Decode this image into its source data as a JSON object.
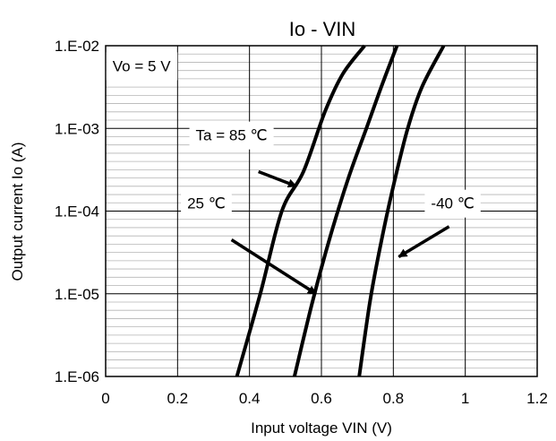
{
  "chart_data": {
    "type": "line",
    "title": "Io - VIN",
    "xlabel": "Input voltage VIN (V)",
    "ylabel": "Output current Io (A)",
    "xlim": [
      0,
      1.2
    ],
    "ylim": [
      1e-06,
      0.01
    ],
    "y_scale": "log",
    "grid": true,
    "x_ticks": [
      0,
      0.2,
      0.4,
      0.6,
      0.8,
      1.0,
      1.2
    ],
    "x_tick_labels": [
      "0",
      "0.2",
      "0.4",
      "0.6",
      "0.8",
      "1",
      "1.2"
    ],
    "y_ticks": [
      1e-06,
      1e-05,
      0.0001,
      0.001,
      0.01
    ],
    "y_tick_labels": [
      "1.E-06",
      "1.E-05",
      "1.E-04",
      "1.E-03",
      "1.E-02"
    ],
    "series": [
      {
        "name": "Ta = 85 °C",
        "x": [
          0.365,
          0.43,
          0.49,
          0.55,
          0.61,
          0.66,
          0.72
        ],
        "y": [
          1e-06,
          1e-05,
          0.0001,
          0.0003,
          0.0016,
          0.0046,
          0.01
        ]
      },
      {
        "name": "25 °C",
        "x": [
          0.525,
          0.575,
          0.625,
          0.675,
          0.725,
          0.77,
          0.81
        ],
        "y": [
          1e-06,
          8e-06,
          5e-05,
          0.00025,
          0.001,
          0.0035,
          0.01
        ]
      },
      {
        "name": "-40 °C",
        "x": [
          0.705,
          0.735,
          0.765,
          0.8,
          0.84,
          0.88,
          0.94
        ],
        "y": [
          1e-06,
          8e-06,
          4e-05,
          0.0002,
          0.001,
          0.0032,
          0.01
        ]
      }
    ],
    "annotations": [
      {
        "id": "vo",
        "text": "Vo = 5 V",
        "at": [
          0.1,
          0.0055
        ]
      },
      {
        "id": "ta85",
        "text": "Ta = 85 ℃",
        "at": [
          0.35,
          0.0008
        ],
        "arrow_from": [
          0.425,
          0.0003
        ],
        "arrow_to": [
          0.53,
          0.0002
        ]
      },
      {
        "id": "t25",
        "text": "25 ℃",
        "at": [
          0.28,
          0.00012
        ],
        "arrow_from": [
          0.35,
          4.5e-05
        ],
        "arrow_to": [
          0.585,
          1e-05
        ]
      },
      {
        "id": "tm40",
        "text": "-40 ℃",
        "at": [
          0.965,
          0.00012
        ],
        "arrow_from": [
          0.955,
          6.5e-05
        ],
        "arrow_to": [
          0.815,
          2.8e-05
        ]
      }
    ]
  }
}
